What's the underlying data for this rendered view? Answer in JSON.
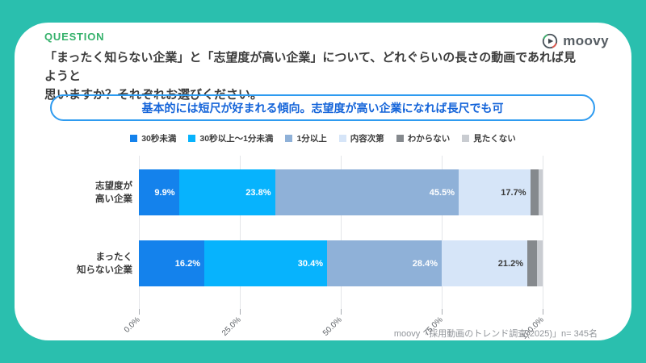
{
  "logo": {
    "text": "moovy"
  },
  "header": {
    "eyebrow": "QUESTION",
    "question_lines": [
      "「まったく知らない企業」と「志望度が高い企業」について、どれぐらいの長さの動画であれば見ようと",
      "思いますか？それぞれお選びください。"
    ]
  },
  "callout": {
    "text": "基本的には短尺が好まれる傾向。志望度が高い企業になれば長尺でも可",
    "border_color": "#2e9bf0",
    "text_color": "#1464d9"
  },
  "chart_data": {
    "type": "bar",
    "orientation": "horizontal",
    "stacked": true,
    "categories": [
      [
        "志望度が",
        "高い企業"
      ],
      [
        "まったく",
        "知らない企業"
      ]
    ],
    "series": [
      {
        "name": "30秒未満",
        "color": "#1482ec",
        "values": [
          9.9,
          16.2
        ],
        "label_color": "#ffffff",
        "show_labels": true
      },
      {
        "name": "30秒以上～1分未満",
        "color": "#07b3fd",
        "values": [
          23.8,
          30.4
        ],
        "label_color": "#ffffff",
        "show_labels": true
      },
      {
        "name": "1分以上",
        "color": "#8fb1d8",
        "values": [
          45.5,
          28.4
        ],
        "label_color": "#ffffff",
        "show_labels": true
      },
      {
        "name": "内容次第",
        "color": "#d6e5f8",
        "values": [
          17.7,
          21.2
        ],
        "label_color": "#3c3c3c",
        "show_labels": true
      },
      {
        "name": "わからない",
        "color": "#85898d",
        "values": [
          2.0,
          2.4
        ],
        "show_labels": false
      },
      {
        "name": "見たくない",
        "color": "#c9ccd1",
        "values": [
          1.1,
          1.4
        ],
        "show_labels": false
      }
    ],
    "x_ticks": [
      "0.0%",
      "25.0%",
      "50.0%",
      "75.0%",
      "100.0%"
    ],
    "xlim": [
      0,
      100
    ],
    "grid": true,
    "legend_position": "top"
  },
  "source": "moovy「採用動画のトレンド調査(2025)」n= 345名",
  "colors": {
    "frame_teal": "#2abfae",
    "card_bg": "#ffffff",
    "eyebrow_green": "#35b16b"
  }
}
